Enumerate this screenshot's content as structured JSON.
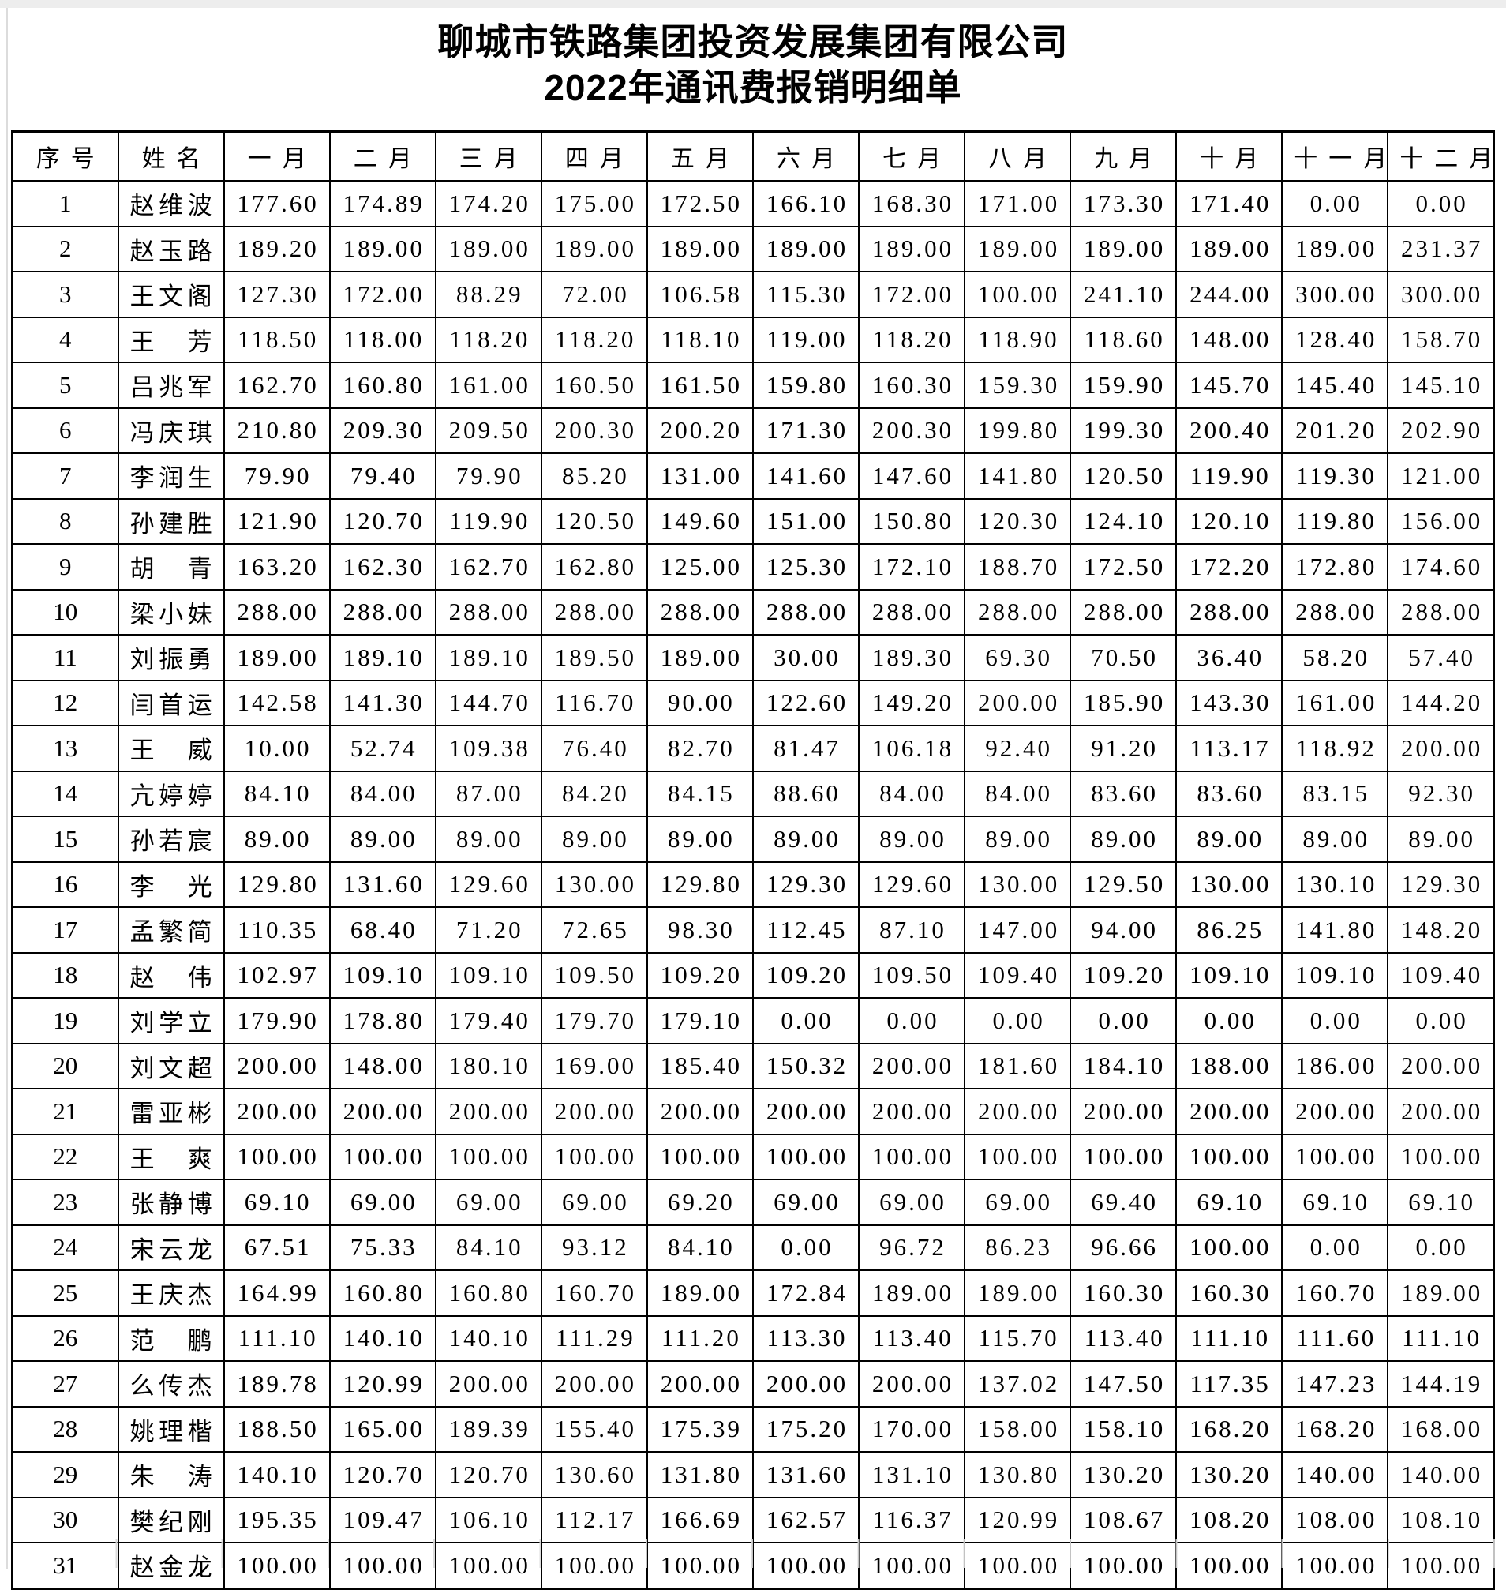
{
  "title": {
    "company": "聊城市铁路集团投资发展集团有限公司",
    "subtitle": "2022年通讯费报销明细单"
  },
  "table": {
    "headers": [
      "序号",
      "姓名",
      "一月",
      "二月",
      "三月",
      "四月",
      "五月",
      "六月",
      "七月",
      "八月",
      "九月",
      "十月",
      "十一月",
      "十二月"
    ],
    "rows": [
      {
        "no": "1",
        "name": "赵维波",
        "values": [
          "177.60",
          "174.89",
          "174.20",
          "175.00",
          "172.50",
          "166.10",
          "168.30",
          "171.00",
          "173.30",
          "171.40",
          "0.00",
          "0.00"
        ]
      },
      {
        "no": "2",
        "name": "赵玉路",
        "values": [
          "189.20",
          "189.00",
          "189.00",
          "189.00",
          "189.00",
          "189.00",
          "189.00",
          "189.00",
          "189.00",
          "189.00",
          "189.00",
          "231.37"
        ]
      },
      {
        "no": "3",
        "name": "王文阁",
        "values": [
          "127.30",
          "172.00",
          "88.29",
          "72.00",
          "106.58",
          "115.30",
          "172.00",
          "100.00",
          "241.10",
          "244.00",
          "300.00",
          "300.00"
        ]
      },
      {
        "no": "4",
        "name": "王芳",
        "values": [
          "118.50",
          "118.00",
          "118.20",
          "118.20",
          "118.10",
          "119.00",
          "118.20",
          "118.90",
          "118.60",
          "148.00",
          "128.40",
          "158.70"
        ]
      },
      {
        "no": "5",
        "name": "吕兆军",
        "values": [
          "162.70",
          "160.80",
          "161.00",
          "160.50",
          "161.50",
          "159.80",
          "160.30",
          "159.30",
          "159.90",
          "145.70",
          "145.40",
          "145.10"
        ]
      },
      {
        "no": "6",
        "name": "冯庆琪",
        "values": [
          "210.80",
          "209.30",
          "209.50",
          "200.30",
          "200.20",
          "171.30",
          "200.30",
          "199.80",
          "199.30",
          "200.40",
          "201.20",
          "202.90"
        ]
      },
      {
        "no": "7",
        "name": "李润生",
        "values": [
          "79.90",
          "79.40",
          "79.90",
          "85.20",
          "131.00",
          "141.60",
          "147.60",
          "141.80",
          "120.50",
          "119.90",
          "119.30",
          "121.00"
        ]
      },
      {
        "no": "8",
        "name": "孙建胜",
        "values": [
          "121.90",
          "120.70",
          "119.90",
          "120.50",
          "149.60",
          "151.00",
          "150.80",
          "120.30",
          "124.10",
          "120.10",
          "119.80",
          "156.00"
        ]
      },
      {
        "no": "9",
        "name": "胡青",
        "values": [
          "163.20",
          "162.30",
          "162.70",
          "162.80",
          "125.00",
          "125.30",
          "172.10",
          "188.70",
          "172.50",
          "172.20",
          "172.80",
          "174.60"
        ]
      },
      {
        "no": "10",
        "name": "梁小妹",
        "values": [
          "288.00",
          "288.00",
          "288.00",
          "288.00",
          "288.00",
          "288.00",
          "288.00",
          "288.00",
          "288.00",
          "288.00",
          "288.00",
          "288.00"
        ]
      },
      {
        "no": "11",
        "name": "刘振勇",
        "values": [
          "189.00",
          "189.10",
          "189.10",
          "189.50",
          "189.00",
          "30.00",
          "189.30",
          "69.30",
          "70.50",
          "36.40",
          "58.20",
          "57.40"
        ]
      },
      {
        "no": "12",
        "name": "闫首运",
        "values": [
          "142.58",
          "141.30",
          "144.70",
          "116.70",
          "90.00",
          "122.60",
          "149.20",
          "200.00",
          "185.90",
          "143.30",
          "161.00",
          "144.20"
        ]
      },
      {
        "no": "13",
        "name": "王威",
        "values": [
          "10.00",
          "52.74",
          "109.38",
          "76.40",
          "82.70",
          "81.47",
          "106.18",
          "92.40",
          "91.20",
          "113.17",
          "118.92",
          "200.00"
        ]
      },
      {
        "no": "14",
        "name": "亢婷婷",
        "values": [
          "84.10",
          "84.00",
          "87.00",
          "84.20",
          "84.15",
          "88.60",
          "84.00",
          "84.00",
          "83.60",
          "83.60",
          "83.15",
          "92.30"
        ]
      },
      {
        "no": "15",
        "name": "孙若宸",
        "values": [
          "89.00",
          "89.00",
          "89.00",
          "89.00",
          "89.00",
          "89.00",
          "89.00",
          "89.00",
          "89.00",
          "89.00",
          "89.00",
          "89.00"
        ]
      },
      {
        "no": "16",
        "name": "李光",
        "values": [
          "129.80",
          "131.60",
          "129.60",
          "130.00",
          "129.80",
          "129.30",
          "129.60",
          "130.00",
          "129.50",
          "130.00",
          "130.10",
          "129.30"
        ]
      },
      {
        "no": "17",
        "name": "孟繁简",
        "values": [
          "110.35",
          "68.40",
          "71.20",
          "72.65",
          "98.30",
          "112.45",
          "87.10",
          "147.00",
          "94.00",
          "86.25",
          "141.80",
          "148.20"
        ]
      },
      {
        "no": "18",
        "name": "赵伟",
        "values": [
          "102.97",
          "109.10",
          "109.10",
          "109.50",
          "109.20",
          "109.20",
          "109.50",
          "109.40",
          "109.20",
          "109.10",
          "109.10",
          "109.40"
        ]
      },
      {
        "no": "19",
        "name": "刘学立",
        "values": [
          "179.90",
          "178.80",
          "179.40",
          "179.70",
          "179.10",
          "0.00",
          "0.00",
          "0.00",
          "0.00",
          "0.00",
          "0.00",
          "0.00"
        ]
      },
      {
        "no": "20",
        "name": "刘文超",
        "values": [
          "200.00",
          "148.00",
          "180.10",
          "169.00",
          "185.40",
          "150.32",
          "200.00",
          "181.60",
          "184.10",
          "188.00",
          "186.00",
          "200.00"
        ]
      },
      {
        "no": "21",
        "name": "雷亚彬",
        "values": [
          "200.00",
          "200.00",
          "200.00",
          "200.00",
          "200.00",
          "200.00",
          "200.00",
          "200.00",
          "200.00",
          "200.00",
          "200.00",
          "200.00"
        ]
      },
      {
        "no": "22",
        "name": "王爽",
        "values": [
          "100.00",
          "100.00",
          "100.00",
          "100.00",
          "100.00",
          "100.00",
          "100.00",
          "100.00",
          "100.00",
          "100.00",
          "100.00",
          "100.00"
        ]
      },
      {
        "no": "23",
        "name": "张静博",
        "values": [
          "69.10",
          "69.00",
          "69.00",
          "69.00",
          "69.20",
          "69.00",
          "69.00",
          "69.00",
          "69.40",
          "69.10",
          "69.10",
          "69.10"
        ]
      },
      {
        "no": "24",
        "name": "宋云龙",
        "values": [
          "67.51",
          "75.33",
          "84.10",
          "93.12",
          "84.10",
          "0.00",
          "96.72",
          "86.23",
          "96.66",
          "100.00",
          "0.00",
          "0.00"
        ]
      },
      {
        "no": "25",
        "name": "王庆杰",
        "values": [
          "164.99",
          "160.80",
          "160.80",
          "160.70",
          "189.00",
          "172.84",
          "189.00",
          "189.00",
          "160.30",
          "160.30",
          "160.70",
          "189.00"
        ]
      },
      {
        "no": "26",
        "name": "范鹏",
        "values": [
          "111.10",
          "140.10",
          "140.10",
          "111.29",
          "111.20",
          "113.30",
          "113.40",
          "115.70",
          "113.40",
          "111.10",
          "111.60",
          "111.10"
        ]
      },
      {
        "no": "27",
        "name": "么传杰",
        "values": [
          "189.78",
          "120.99",
          "200.00",
          "200.00",
          "200.00",
          "200.00",
          "200.00",
          "137.02",
          "147.50",
          "117.35",
          "147.23",
          "144.19"
        ]
      },
      {
        "no": "28",
        "name": "姚理楷",
        "values": [
          "188.50",
          "165.00",
          "189.39",
          "155.40",
          "175.39",
          "175.20",
          "170.00",
          "158.00",
          "158.10",
          "168.20",
          "168.20",
          "168.00"
        ]
      },
      {
        "no": "29",
        "name": "朱涛",
        "values": [
          "140.10",
          "120.70",
          "120.70",
          "130.60",
          "131.80",
          "131.60",
          "131.10",
          "130.80",
          "130.20",
          "130.20",
          "140.00",
          "140.00"
        ]
      },
      {
        "no": "30",
        "name": "樊纪刚",
        "values": [
          "195.35",
          "109.47",
          "106.10",
          "112.17",
          "166.69",
          "162.57",
          "116.37",
          "120.99",
          "108.67",
          "108.20",
          "108.00",
          "108.10"
        ]
      },
      {
        "no": "31",
        "name": "赵金龙",
        "values": [
          "100.00",
          "100.00",
          "100.00",
          "100.00",
          "100.00",
          "100.00",
          "100.00",
          "100.00",
          "100.00",
          "100.00",
          "100.00",
          "100.00"
        ]
      }
    ]
  }
}
